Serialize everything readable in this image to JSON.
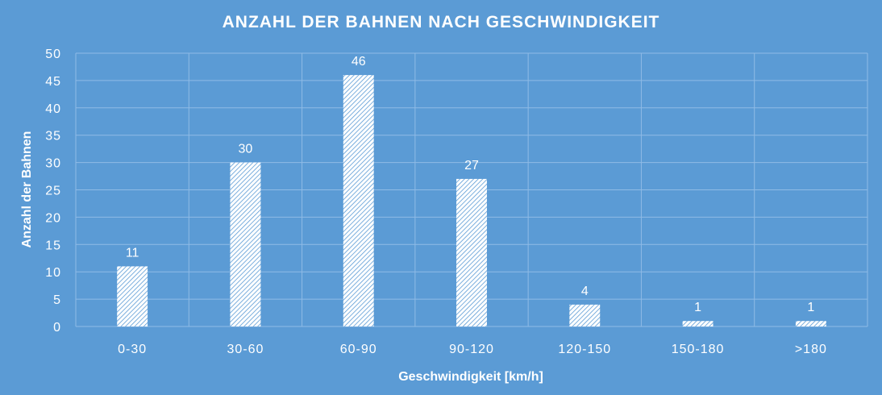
{
  "chart_data": {
    "type": "bar",
    "title": "ANZAHL DER BAHNEN NACH GESCHWINDIGKEIT",
    "xlabel": "Geschwindigkeit [km/h]",
    "ylabel": "Anzahl der Bahnen",
    "categories": [
      "0-30",
      "30-60",
      "60-90",
      "90-120",
      "120-150",
      "150-180",
      ">180"
    ],
    "values": [
      11,
      30,
      46,
      27,
      4,
      1,
      1
    ],
    "ylim": [
      0,
      50
    ],
    "yticks": [
      0,
      5,
      10,
      15,
      20,
      25,
      30,
      35,
      40,
      45,
      50
    ],
    "grid": true,
    "legend": "none",
    "data_labels": true,
    "colors": {
      "background": "#5b9bd5",
      "bar_fill": "hatched white",
      "text": "#ffffff"
    }
  }
}
